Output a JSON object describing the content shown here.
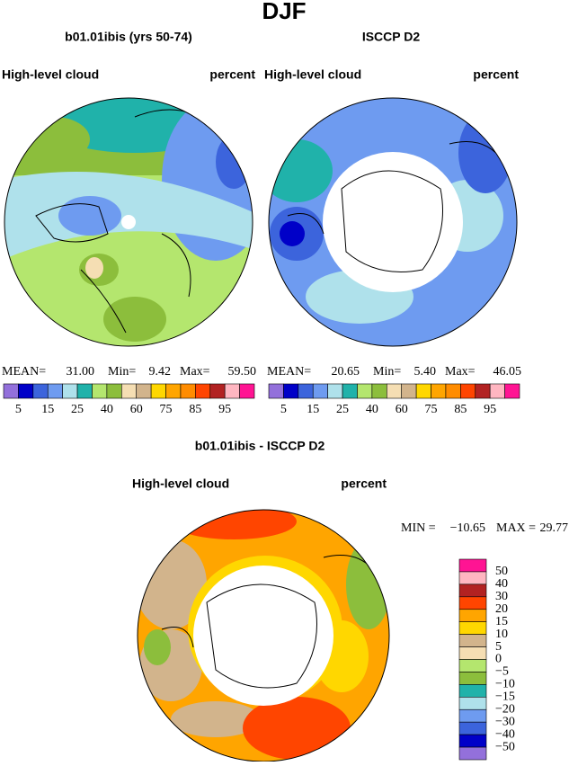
{
  "title": "DJF",
  "panels": [
    {
      "subtitle": "b01.01ibis (yrs 50-74)",
      "left_label": "High-level cloud",
      "right_label": "percent",
      "stats": [
        "MEAN=",
        "31.00",
        "Min=",
        "9.42",
        "Max=",
        "59.50"
      ]
    },
    {
      "subtitle": "ISCCP D2",
      "left_label": "High-level cloud",
      "right_label": "percent",
      "stats": [
        "MEAN=",
        "20.65",
        "Min=",
        "5.40",
        "Max=",
        "46.05"
      ]
    }
  ],
  "colorbar": {
    "colors": [
      "#9370db",
      "#0000c8",
      "#3c64dc",
      "#6e9bf0",
      "#afe1eb",
      "#20b2aa",
      "#b4e66e",
      "#8cbe3c",
      "#f5deb3",
      "#d2b48c",
      "#ffd700",
      "#ffa500",
      "#ff8c00",
      "#ff4500",
      "#b22222",
      "#ffb6c1",
      "#ff1493"
    ],
    "labels": [
      "5",
      "15",
      "25",
      "40",
      "60",
      "75",
      "85",
      "95"
    ]
  },
  "difference": {
    "subtitle": "b01.01ibis - ISCCP D2",
    "left_label": "High-level cloud",
    "right_label": "percent",
    "stats": [
      "MIN =",
      "−10.65",
      "MAX =",
      "29.77"
    ],
    "colors": [
      "#ff1493",
      "#ffb6c1",
      "#b22222",
      "#ff4500",
      "#ffa500",
      "#ffd700",
      "#d2b48c",
      "#f5deb3",
      "#b4e66e",
      "#8cbe3c",
      "#20b2aa",
      "#afe1eb",
      "#6e9bf0",
      "#3c64dc",
      "#0000c8",
      "#9370db"
    ],
    "labels": [
      "50",
      "40",
      "30",
      "20",
      "15",
      "10",
      "5",
      "0",
      "−5",
      "−10",
      "−15",
      "−20",
      "−30",
      "−40",
      "−50"
    ]
  }
}
